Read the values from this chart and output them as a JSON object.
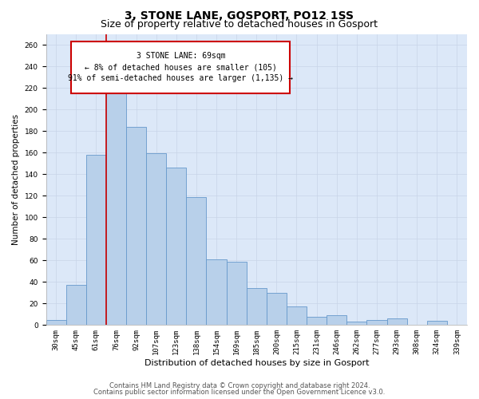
{
  "title": "3, STONE LANE, GOSPORT, PO12 1SS",
  "subtitle": "Size of property relative to detached houses in Gosport",
  "xlabel": "Distribution of detached houses by size in Gosport",
  "ylabel": "Number of detached properties",
  "footer_line1": "Contains HM Land Registry data © Crown copyright and database right 2024.",
  "footer_line2": "Contains public sector information licensed under the Open Government Licence v3.0.",
  "categories": [
    "30sqm",
    "45sqm",
    "61sqm",
    "76sqm",
    "92sqm",
    "107sqm",
    "123sqm",
    "138sqm",
    "154sqm",
    "169sqm",
    "185sqm",
    "200sqm",
    "215sqm",
    "231sqm",
    "246sqm",
    "262sqm",
    "277sqm",
    "293sqm",
    "308sqm",
    "324sqm",
    "339sqm"
  ],
  "values": [
    5,
    37,
    158,
    217,
    184,
    159,
    146,
    119,
    61,
    59,
    34,
    30,
    17,
    8,
    9,
    3,
    5,
    6,
    0,
    4,
    0
  ],
  "bar_color": "#b8d0ea",
  "bar_edge_color": "#6699cc",
  "bar_width": 1.0,
  "vline_x": 2.5,
  "vline_color": "#cc0000",
  "annotation_line1": "3 STONE LANE: 69sqm",
  "annotation_line2": "← 8% of detached houses are smaller (105)",
  "annotation_line3": "91% of semi-detached houses are larger (1,135) →",
  "annotation_box_color": "#cc0000",
  "annotation_bg": "#ffffff",
  "ylim_max": 270,
  "ytick_step": 20,
  "grid_color": "#c8d4e8",
  "plot_bg": "#dce8f8",
  "title_fontsize": 10,
  "subtitle_fontsize": 9,
  "xlabel_fontsize": 8,
  "ylabel_fontsize": 7.5,
  "tick_fontsize": 6.5,
  "annot_fontsize": 7,
  "footer_fontsize": 6
}
